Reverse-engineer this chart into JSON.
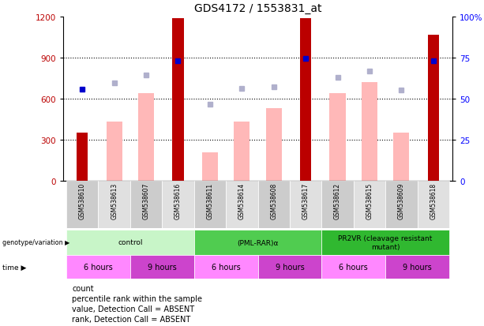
{
  "title": "GDS4172 / 1553831_at",
  "samples": [
    "GSM538610",
    "GSM538613",
    "GSM538607",
    "GSM538616",
    "GSM538611",
    "GSM538614",
    "GSM538608",
    "GSM538617",
    "GSM538612",
    "GSM538615",
    "GSM538609",
    "GSM538618"
  ],
  "bar_values_dark": [
    350,
    null,
    null,
    1190,
    null,
    null,
    null,
    1190,
    null,
    null,
    null,
    1070
  ],
  "bar_values_light": [
    null,
    430,
    640,
    null,
    210,
    430,
    530,
    null,
    640,
    720,
    350,
    null
  ],
  "rank_dots_dark": [
    670,
    null,
    null,
    875,
    null,
    null,
    null,
    893,
    null,
    null,
    null,
    875
  ],
  "rank_dots_light": [
    null,
    718,
    775,
    null,
    560,
    675,
    688,
    null,
    758,
    800,
    665,
    null
  ],
  "ylim_left": [
    0,
    1200
  ],
  "ylim_right": [
    0,
    100
  ],
  "yticks_left": [
    0,
    300,
    600,
    900,
    1200
  ],
  "yticks_right": [
    0,
    25,
    50,
    75,
    100
  ],
  "ytick_labels_right": [
    "0",
    "25",
    "50",
    "75",
    "100%"
  ],
  "genotype_groups": [
    {
      "label": "control",
      "start": 0,
      "end": 4,
      "color": "#c8f5c8"
    },
    {
      "label": "(PML-RAR)α",
      "start": 4,
      "end": 8,
      "color": "#50cc50"
    },
    {
      "label": "PR2VR (cleavage resistant\nmutant)",
      "start": 8,
      "end": 12,
      "color": "#30b830"
    }
  ],
  "time_groups": [
    {
      "label": "6 hours",
      "start": 0,
      "end": 2,
      "color": "#ff88ff"
    },
    {
      "label": "9 hours",
      "start": 2,
      "end": 4,
      "color": "#cc44cc"
    },
    {
      "label": "6 hours",
      "start": 4,
      "end": 6,
      "color": "#ff88ff"
    },
    {
      "label": "9 hours",
      "start": 6,
      "end": 8,
      "color": "#cc44cc"
    },
    {
      "label": "6 hours",
      "start": 8,
      "end": 10,
      "color": "#ff88ff"
    },
    {
      "label": "9 hours",
      "start": 10,
      "end": 12,
      "color": "#cc44cc"
    }
  ],
  "legend_items": [
    {
      "color": "#cc0000",
      "label": "count"
    },
    {
      "color": "#0000cc",
      "label": "percentile rank within the sample"
    },
    {
      "color": "#ffb8b8",
      "label": "value, Detection Call = ABSENT"
    },
    {
      "color": "#b8b8d8",
      "label": "rank, Detection Call = ABSENT"
    }
  ],
  "dark_red": "#bb0000",
  "light_red": "#ffb8b8",
  "dark_blue": "#0000cc",
  "light_blue": "#b0b0cc",
  "bg_color": "#ffffff"
}
